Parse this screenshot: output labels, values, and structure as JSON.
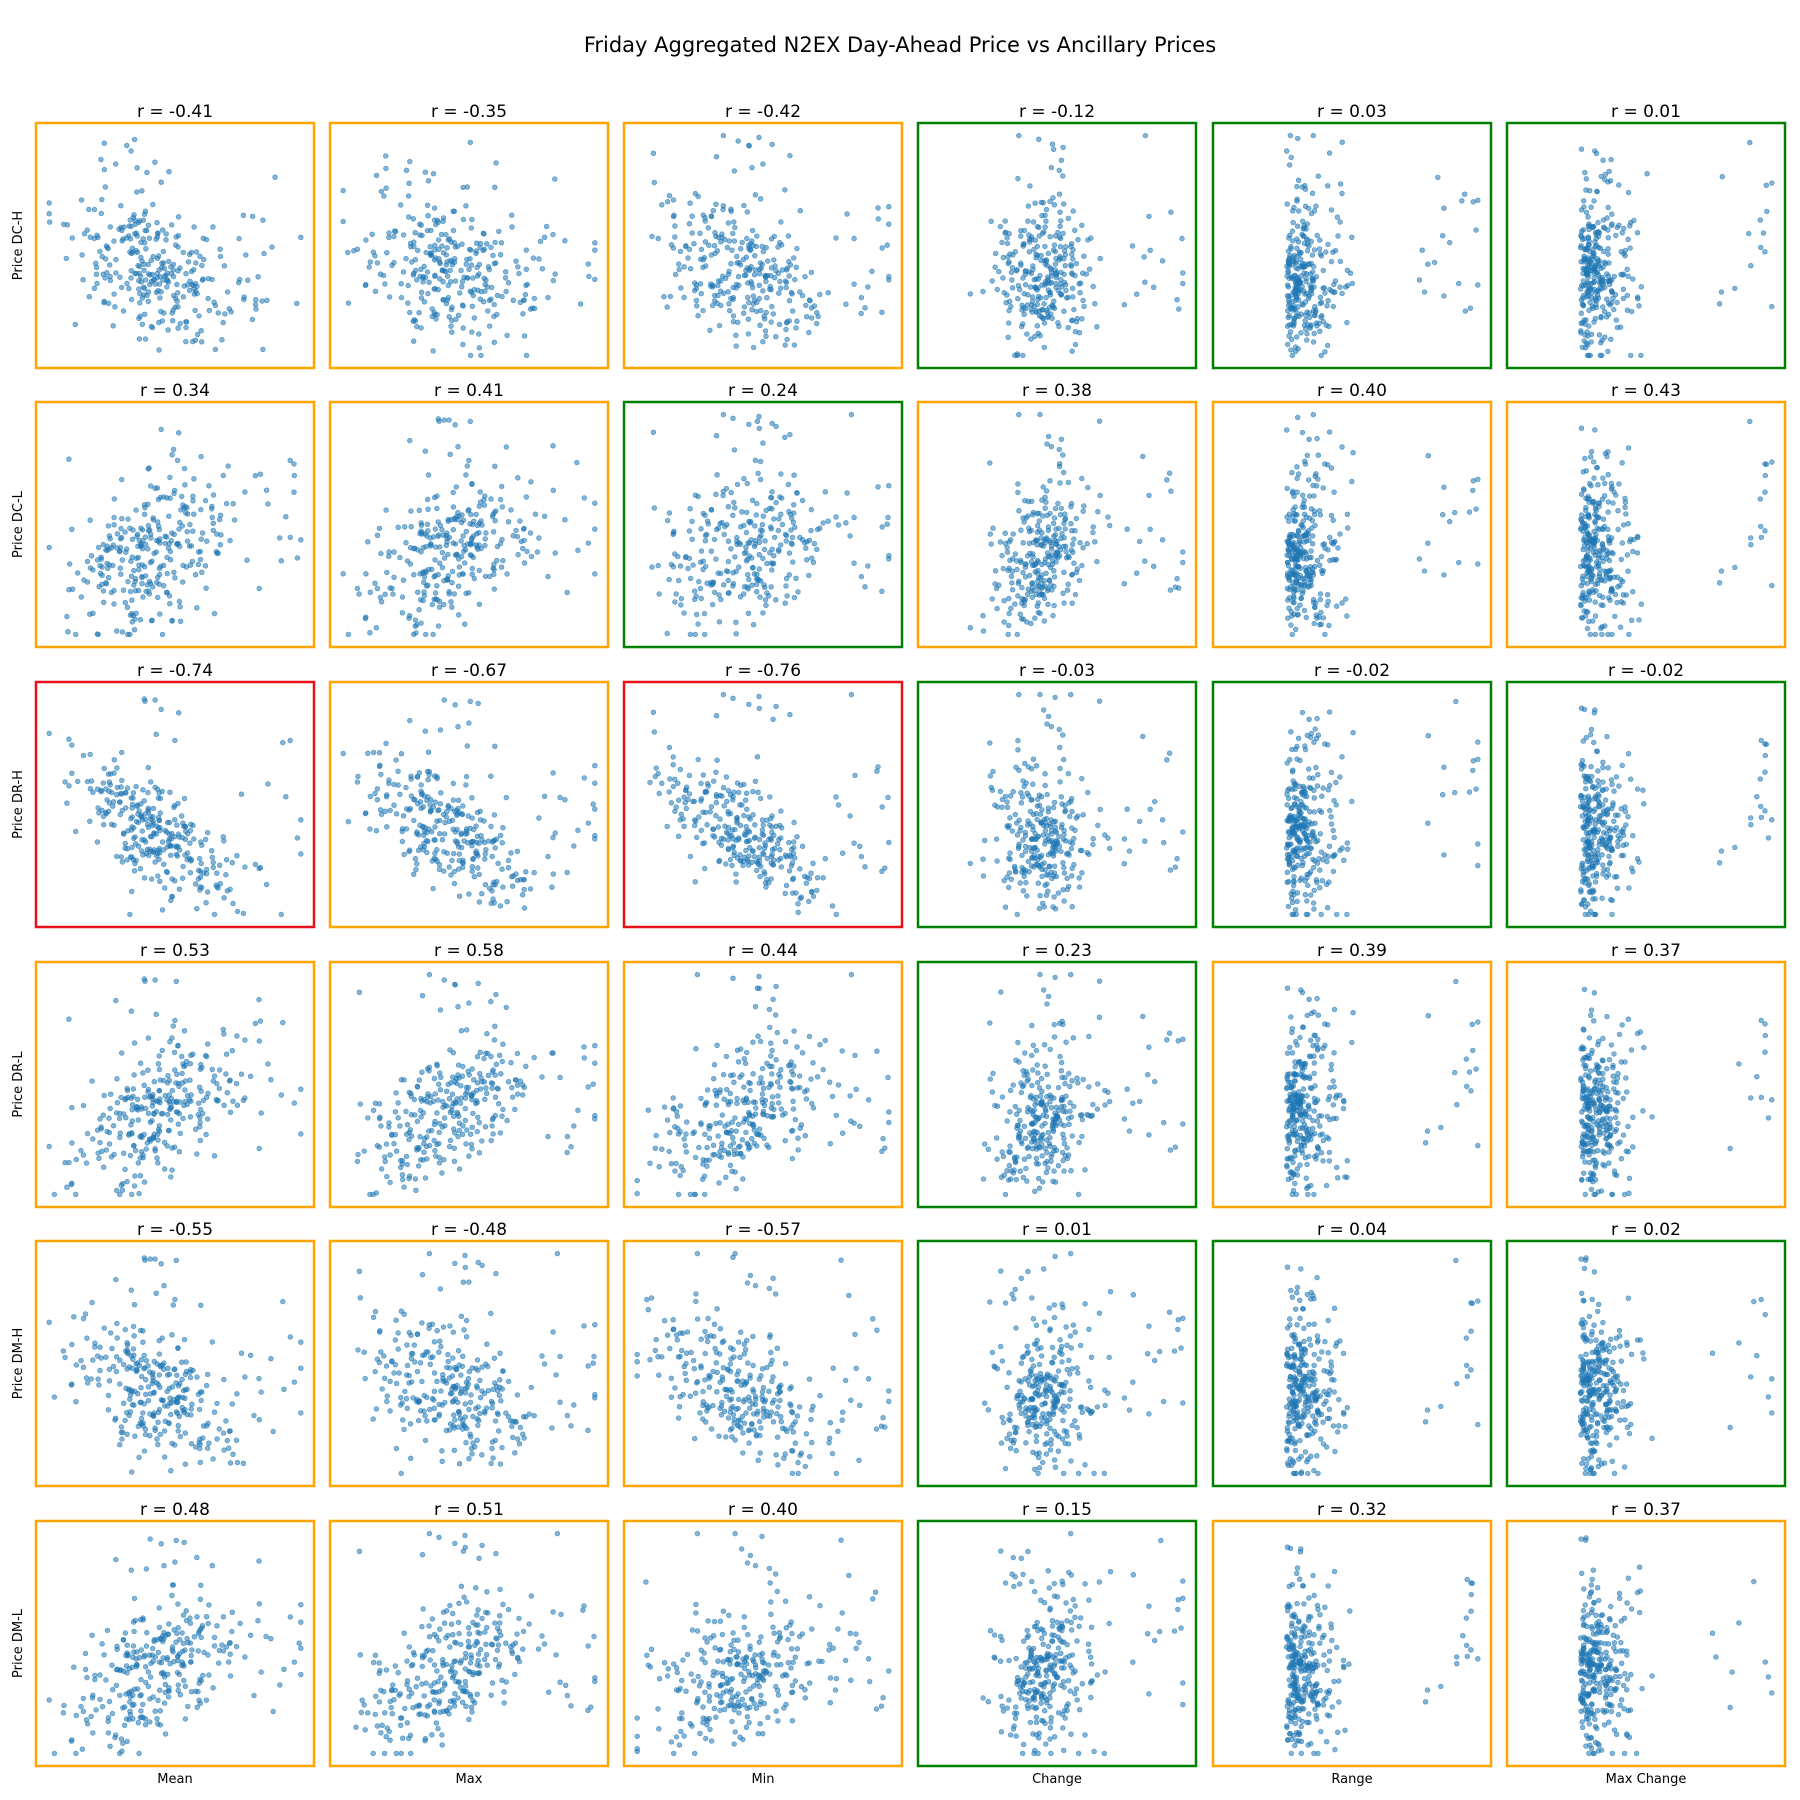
{
  "chart_data": {
    "type": "scatter",
    "title": "Friday Aggregated N2EX Day-Ahead Price vs Ancillary Prices",
    "row_labels": [
      "Price DC-H",
      "Price DC-L",
      "Price DR-H",
      "Price DR-L",
      "Price DM-H",
      "Price DM-L"
    ],
    "column_labels": [
      "Mean",
      "Max",
      "Min",
      "Change",
      "Range",
      "Max Change"
    ],
    "r_values": [
      [
        "r = -0.41",
        "r = -0.35",
        "r = -0.42",
        "r = -0.12",
        "r = 0.03",
        "r = 0.01"
      ],
      [
        "r = 0.34",
        "r = 0.41",
        "r = 0.24",
        "r = 0.38",
        "r = 0.40",
        "r = 0.43"
      ],
      [
        "r = -0.74",
        "r = -0.67",
        "r = -0.76",
        "r = -0.03",
        "r = -0.02",
        "r = -0.02"
      ],
      [
        "r = 0.53",
        "r = 0.58",
        "r = 0.44",
        "r = 0.23",
        "r = 0.39",
        "r = 0.37"
      ],
      [
        "r = -0.55",
        "r = -0.48",
        "r = -0.57",
        "r = 0.01",
        "r = 0.04",
        "r = 0.02"
      ],
      [
        "r = 0.48",
        "r = 0.51",
        "r = 0.40",
        "r = 0.15",
        "r = 0.32",
        "r = 0.37"
      ]
    ],
    "r_numeric": [
      [
        -0.41,
        -0.35,
        -0.42,
        -0.12,
        0.03,
        0.01
      ],
      [
        0.34,
        0.41,
        0.24,
        0.38,
        0.4,
        0.43
      ],
      [
        -0.74,
        -0.67,
        -0.76,
        -0.03,
        -0.02,
        -0.02
      ],
      [
        0.53,
        0.58,
        0.44,
        0.23,
        0.39,
        0.37
      ],
      [
        -0.55,
        -0.48,
        -0.57,
        0.01,
        0.04,
        0.02
      ],
      [
        0.48,
        0.51,
        0.4,
        0.15,
        0.32,
        0.37
      ]
    ],
    "border_rule": "|r| >= 0.7 red, 0.3 <= |r| < 0.7 orange, |r| < 0.3 green",
    "border_colors": {
      "strong": "#e8111a",
      "moderate": "#ffa500",
      "weak": "#008000"
    },
    "point_color": "#1f77b4",
    "point_alpha": 0.55,
    "points_per_panel": 300,
    "axes_ticks": "none",
    "grid": false
  }
}
